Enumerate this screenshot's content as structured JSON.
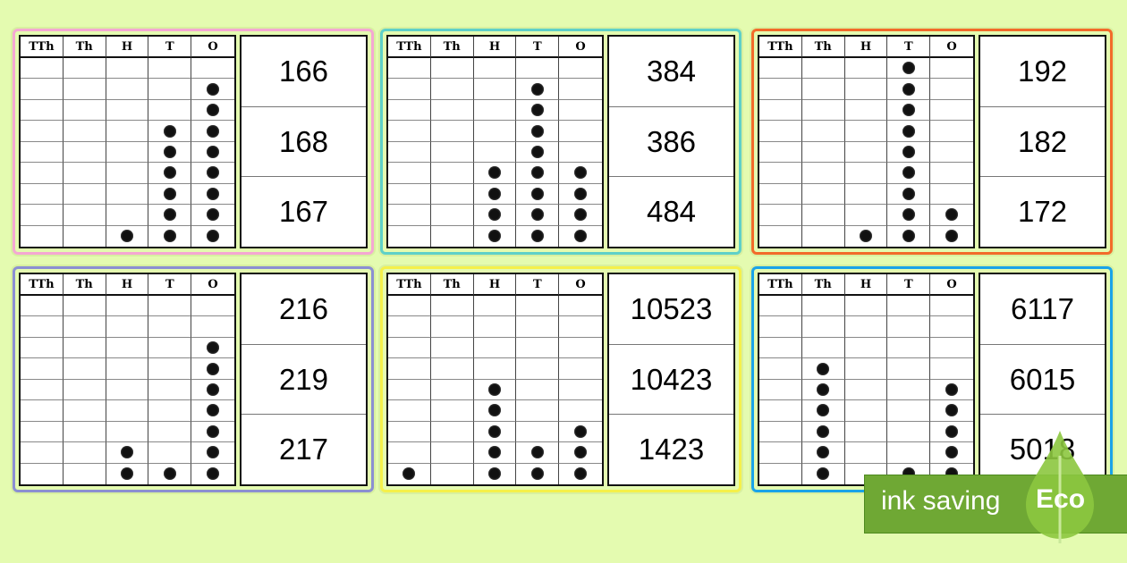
{
  "columns": [
    "TTh",
    "Th",
    "H",
    "T",
    "O"
  ],
  "cards": [
    {
      "border": "#f4a8d2",
      "counters": [
        0,
        0,
        1,
        6,
        8
      ],
      "options": [
        "166",
        "168",
        "167"
      ]
    },
    {
      "border": "#5fd0c8",
      "counters": [
        0,
        0,
        4,
        8,
        4
      ],
      "options": [
        "384",
        "386",
        "484"
      ]
    },
    {
      "border": "#f26b2a",
      "counters": [
        0,
        0,
        1,
        9,
        2
      ],
      "options": [
        "192",
        "182",
        "172"
      ]
    },
    {
      "border": "#8b8fd2",
      "counters": [
        0,
        0,
        2,
        1,
        7
      ],
      "options": [
        "216",
        "219",
        "217"
      ]
    },
    {
      "border": "#f5f04a",
      "counters": [
        1,
        0,
        5,
        2,
        3
      ],
      "options": [
        "10523",
        "10423",
        "1423"
      ]
    },
    {
      "border": "#1aa3e8",
      "counters": [
        0,
        6,
        0,
        1,
        5
      ],
      "options": [
        "6117",
        "6015",
        "5018"
      ]
    }
  ],
  "badge": {
    "text": "ink saving",
    "label": "Eco",
    "icon": "leaf-icon",
    "color": "#6fa834"
  }
}
